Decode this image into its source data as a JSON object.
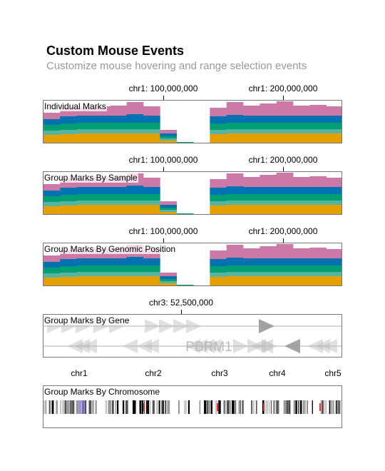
{
  "header": {
    "title": "Custom Mouse Events",
    "subtitle": "Customize mouse hovering and range selection events"
  },
  "colors": {
    "pink": "#CC79A7",
    "blue": "#0072B2",
    "green": "#009E73",
    "teal": "#56B4A0",
    "orange": "#E69F00",
    "gene": "#bbbbbb"
  },
  "bar_tracks": [
    {
      "label": "Individual Marks",
      "ticks": [
        {
          "label": "chr1: 100,000,000"
        },
        {
          "label": "chr1: 200,000,000"
        }
      ],
      "bins": [
        {
          "orange": 12,
          "teal": 6,
          "green": 8,
          "blue": 8,
          "pink": 9
        },
        {
          "orange": 13,
          "teal": 6,
          "green": 9,
          "blue": 10,
          "pink": 13
        },
        {
          "orange": 14,
          "teal": 6,
          "green": 9,
          "blue": 10,
          "pink": 12
        },
        {
          "orange": 14,
          "teal": 6,
          "green": 9,
          "blue": 10,
          "pink": 13
        },
        {
          "orange": 14,
          "teal": 6,
          "green": 9,
          "blue": 10,
          "pink": 14
        },
        {
          "orange": 14,
          "teal": 6,
          "green": 9,
          "blue": 12,
          "pink": 17
        },
        {
          "orange": 14,
          "teal": 6,
          "green": 9,
          "blue": 10,
          "pink": 13
        },
        {
          "orange": 4,
          "teal": 3,
          "green": 3,
          "blue": 4,
          "pink": 5
        },
        {
          "orange": 1,
          "teal": 0,
          "green": 1,
          "blue": 0,
          "pink": 0
        },
        {
          "orange": 0,
          "teal": 0,
          "green": 0,
          "blue": 0,
          "pink": 0
        },
        {
          "orange": 13,
          "teal": 6,
          "green": 9,
          "blue": 10,
          "pink": 12
        },
        {
          "orange": 14,
          "teal": 6,
          "green": 9,
          "blue": 11,
          "pink": 18
        },
        {
          "orange": 14,
          "teal": 6,
          "green": 9,
          "blue": 10,
          "pink": 14
        },
        {
          "orange": 14,
          "teal": 6,
          "green": 9,
          "blue": 10,
          "pink": 17
        },
        {
          "orange": 14,
          "teal": 6,
          "green": 9,
          "blue": 10,
          "pink": 20
        },
        {
          "orange": 14,
          "teal": 6,
          "green": 9,
          "blue": 10,
          "pink": 14
        },
        {
          "orange": 14,
          "teal": 6,
          "green": 9,
          "blue": 10,
          "pink": 15
        },
        {
          "orange": 14,
          "teal": 6,
          "green": 9,
          "blue": 10,
          "pink": 13
        }
      ]
    },
    {
      "label": "Group Marks By Sample",
      "ticks": [
        {
          "label": "chr1: 100,000,000"
        },
        {
          "label": "chr1: 200,000,000"
        }
      ],
      "bins": [
        {
          "orange": 12,
          "teal": 6,
          "green": 8,
          "blue": 8,
          "pink": 9
        },
        {
          "orange": 13,
          "teal": 6,
          "green": 9,
          "blue": 10,
          "pink": 13
        },
        {
          "orange": 14,
          "teal": 6,
          "green": 9,
          "blue": 10,
          "pink": 12
        },
        {
          "orange": 14,
          "teal": 6,
          "green": 9,
          "blue": 10,
          "pink": 13
        },
        {
          "orange": 14,
          "teal": 6,
          "green": 9,
          "blue": 10,
          "pink": 14
        },
        {
          "orange": 14,
          "teal": 6,
          "green": 9,
          "blue": 12,
          "pink": 17
        },
        {
          "orange": 14,
          "teal": 6,
          "green": 9,
          "blue": 10,
          "pink": 13
        },
        {
          "orange": 4,
          "teal": 3,
          "green": 3,
          "blue": 4,
          "pink": 5
        },
        {
          "orange": 1,
          "teal": 0,
          "green": 1,
          "blue": 0,
          "pink": 0
        },
        {
          "orange": 0,
          "teal": 0,
          "green": 0,
          "blue": 0,
          "pink": 0
        },
        {
          "orange": 13,
          "teal": 6,
          "green": 9,
          "blue": 10,
          "pink": 12
        },
        {
          "orange": 14,
          "teal": 6,
          "green": 9,
          "blue": 11,
          "pink": 18
        },
        {
          "orange": 14,
          "teal": 6,
          "green": 9,
          "blue": 10,
          "pink": 14
        },
        {
          "orange": 14,
          "teal": 6,
          "green": 9,
          "blue": 10,
          "pink": 17
        },
        {
          "orange": 14,
          "teal": 6,
          "green": 9,
          "blue": 10,
          "pink": 20
        },
        {
          "orange": 14,
          "teal": 6,
          "green": 9,
          "blue": 10,
          "pink": 14
        },
        {
          "orange": 14,
          "teal": 6,
          "green": 9,
          "blue": 10,
          "pink": 15
        },
        {
          "orange": 14,
          "teal": 6,
          "green": 9,
          "blue": 10,
          "pink": 13
        }
      ]
    },
    {
      "label": "Group Marks By Genomic Position",
      "ticks": [
        {
          "label": "chr1: 100,000,000"
        },
        {
          "label": "chr1: 200,000,000"
        }
      ],
      "bins": [
        {
          "orange": 12,
          "teal": 6,
          "green": 8,
          "blue": 8,
          "pink": 9
        },
        {
          "orange": 13,
          "teal": 6,
          "green": 9,
          "blue": 10,
          "pink": 13
        },
        {
          "orange": 14,
          "teal": 6,
          "green": 9,
          "blue": 10,
          "pink": 12
        },
        {
          "orange": 14,
          "teal": 6,
          "green": 9,
          "blue": 10,
          "pink": 13
        },
        {
          "orange": 14,
          "teal": 6,
          "green": 9,
          "blue": 10,
          "pink": 14
        },
        {
          "orange": 14,
          "teal": 6,
          "green": 9,
          "blue": 12,
          "pink": 17
        },
        {
          "orange": 14,
          "teal": 6,
          "green": 9,
          "blue": 10,
          "pink": 13
        },
        {
          "orange": 4,
          "teal": 3,
          "green": 3,
          "blue": 4,
          "pink": 5
        },
        {
          "orange": 1,
          "teal": 0,
          "green": 1,
          "blue": 0,
          "pink": 0
        },
        {
          "orange": 0,
          "teal": 0,
          "green": 0,
          "blue": 0,
          "pink": 0
        },
        {
          "orange": 13,
          "teal": 6,
          "green": 9,
          "blue": 10,
          "pink": 12
        },
        {
          "orange": 14,
          "teal": 6,
          "green": 9,
          "blue": 11,
          "pink": 18
        },
        {
          "orange": 14,
          "teal": 6,
          "green": 9,
          "blue": 10,
          "pink": 14
        },
        {
          "orange": 14,
          "teal": 6,
          "green": 9,
          "blue": 10,
          "pink": 17
        },
        {
          "orange": 14,
          "teal": 6,
          "green": 9,
          "blue": 10,
          "pink": 20
        },
        {
          "orange": 14,
          "teal": 6,
          "green": 9,
          "blue": 10,
          "pink": 14
        },
        {
          "orange": 14,
          "teal": 6,
          "green": 9,
          "blue": 10,
          "pink": 15
        },
        {
          "orange": 14,
          "teal": 6,
          "green": 9,
          "blue": 10,
          "pink": 13
        }
      ]
    }
  ],
  "gene_track": {
    "label": "Group Marks By Gene",
    "tick": {
      "label": "chr3: 52,500,000"
    },
    "gene_name": "PBRM1"
  },
  "chromosome_track": {
    "label": "Group Marks By Chromosome",
    "chromosomes": [
      "chr1",
      "chr2",
      "chr3",
      "chr4",
      "chr5"
    ]
  }
}
